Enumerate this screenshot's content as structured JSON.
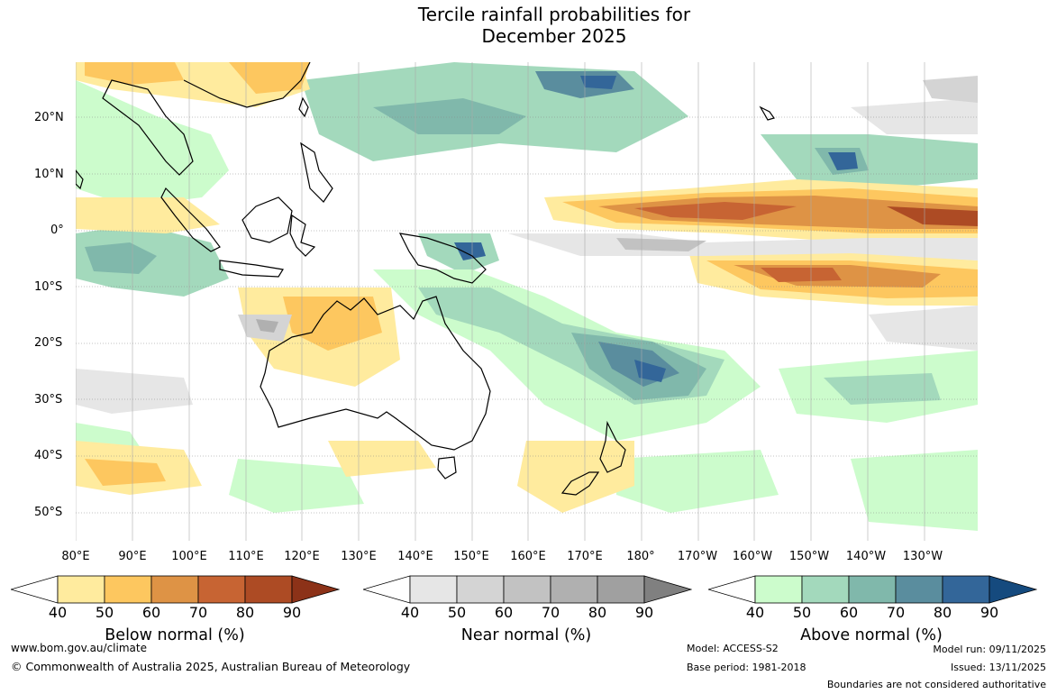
{
  "title": {
    "line1": "Tercile rainfall probabilities for",
    "line2": "December 2025"
  },
  "map": {
    "lat_labels": [
      "20°N",
      "10°N",
      "0°",
      "10°S",
      "20°S",
      "30°S",
      "40°S",
      "50°S"
    ],
    "lon_labels": [
      "80°E",
      "90°E",
      "100°E",
      "110°E",
      "120°E",
      "130°E",
      "140°E",
      "150°E",
      "160°E",
      "170°E",
      "180°",
      "170°W",
      "160°W",
      "150°W",
      "140°W",
      "130°W"
    ]
  },
  "colorbars": {
    "tick_values": [
      "40",
      "50",
      "60",
      "70",
      "80",
      "90"
    ],
    "below": {
      "label": "Below normal (%)",
      "colors": [
        "#ffffff",
        "#ffeb9e",
        "#fdc75f",
        "#de9345",
        "#c76433",
        "#ad4b24",
        "#8c3218"
      ]
    },
    "near": {
      "label": "Near normal (%)",
      "colors": [
        "#ffffff",
        "#e6e6e6",
        "#d4d4d4",
        "#c2c2c2",
        "#b0b0b0",
        "#a0a0a0",
        "#808080"
      ]
    },
    "above": {
      "label": "Above normal (%)",
      "colors": [
        "#ffffff",
        "#ccfccc",
        "#a3d9bc",
        "#80b8ab",
        "#5a8d9e",
        "#336699",
        "#154a7e"
      ]
    }
  },
  "footer": {
    "website": "www.bom.gov.au/climate",
    "copyright": "© Commonwealth of Australia 2025, Australian Bureau of Meteorology",
    "model": "Model: ACCESS-S2",
    "base_period": "Base period: 1981-2018",
    "model_run": "Model run: 09/11/2025",
    "issued": "Issued: 13/11/2025",
    "disclaimer": "Boundaries are not considered authoritative"
  }
}
